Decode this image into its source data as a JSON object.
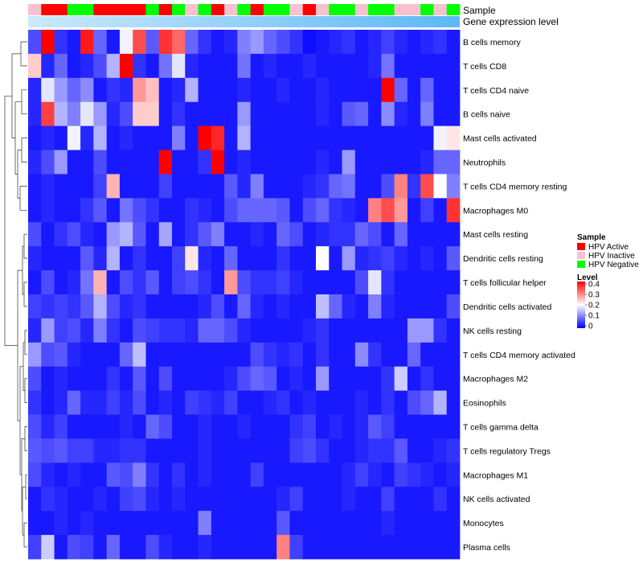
{
  "chart_data": {
    "type": "heatmap",
    "annotation_labels": [
      "Sample",
      "Gene expression level"
    ],
    "rows": [
      "B cells memory",
      "T cells CD8",
      "T cells CD4 naive",
      "B cells naive",
      "Mast cells activated",
      "Neutrophils",
      "T cells CD4 memory resting",
      "Macrophages M0",
      "Mast cells resting",
      "Dendritic cells resting",
      "T cells follicular helper",
      "Dendritic cells activated",
      "NK cells resting",
      "T cells CD4 memory activated",
      "Macrophages M2",
      "Eosinophils",
      "T cells gamma delta",
      "T cells regulatory  Tregs",
      "Macrophages M1",
      "NK cells activated",
      "Monocytes",
      "Plasma cells"
    ],
    "sample_groups": [
      "HPV Inactive",
      "HPV Active",
      "HPV Active",
      "HPV Negative",
      "HPV Negative",
      "HPV Active",
      "HPV Active",
      "HPV Active",
      "HPV Active",
      "HPV Negative",
      "HPV Active",
      "HPV Negative",
      "HPV Inactive",
      "HPV Negative",
      "HPV Active",
      "HPV Inactive",
      "HPV Negative",
      "HPV Active",
      "HPV Negative",
      "HPV Negative",
      "HPV Inactive",
      "HPV Active",
      "HPV Inactive",
      "HPV Negative",
      "HPV Negative",
      "HPV Inactive",
      "HPV Negative",
      "HPV Negative",
      "HPV Inactive",
      "HPV Inactive",
      "HPV Negative",
      "HPV Inactive",
      "HPV Negative"
    ],
    "values": [
      [
        0.06,
        0.4,
        0.04,
        0.02,
        0.38,
        0.08,
        0.02,
        0.19,
        0.34,
        0.07,
        0.36,
        0.32,
        0.08,
        0.04,
        0.02,
        0.03,
        0.1,
        0.12,
        0.08,
        0.06,
        0.04,
        0.01,
        0.02,
        0.03,
        0.04,
        0.02,
        0.03,
        0.05,
        0.03,
        0.02,
        0.03,
        0.04,
        0.02
      ],
      [
        0.24,
        0.03,
        0.08,
        0.02,
        0.03,
        0.06,
        0.14,
        0.4,
        0.04,
        0.02,
        0.09,
        0.18,
        0.03,
        0.02,
        0.02,
        0.02,
        0.09,
        0.02,
        0.03,
        0.02,
        0.02,
        0.03,
        0.02,
        0.02,
        0.02,
        0.02,
        0.03,
        0.09,
        0.02,
        0.02,
        0.02,
        0.02,
        0.02
      ],
      [
        0.03,
        0.18,
        0.12,
        0.08,
        0.11,
        0.02,
        0.04,
        0.03,
        0.28,
        0.25,
        0.02,
        0.03,
        0.14,
        0.02,
        0.02,
        0.02,
        0.03,
        0.02,
        0.02,
        0.03,
        0.02,
        0.02,
        0.03,
        0.02,
        0.02,
        0.02,
        0.02,
        0.4,
        0.08,
        0.02,
        0.08,
        0.02,
        0.02
      ],
      [
        0.03,
        0.35,
        0.14,
        0.1,
        0.18,
        0.12,
        0.03,
        0.06,
        0.24,
        0.24,
        0.02,
        0.04,
        0.02,
        0.02,
        0.02,
        0.02,
        0.12,
        0.02,
        0.02,
        0.02,
        0.02,
        0.02,
        0.03,
        0.02,
        0.07,
        0.08,
        0.02,
        0.11,
        0.03,
        0.02,
        0.1,
        0.02,
        0.02
      ],
      [
        0.02,
        0.03,
        0.02,
        0.19,
        0.03,
        0.14,
        0.02,
        0.03,
        0.02,
        0.02,
        0.02,
        0.1,
        0.02,
        0.4,
        0.37,
        0.02,
        0.14,
        0.02,
        0.02,
        0.02,
        0.02,
        0.02,
        0.02,
        0.02,
        0.02,
        0.02,
        0.02,
        0.02,
        0.02,
        0.02,
        0.02,
        0.19,
        0.22
      ],
      [
        0.03,
        0.06,
        0.12,
        0.02,
        0.02,
        0.06,
        0.02,
        0.02,
        0.02,
        0.02,
        0.4,
        0.02,
        0.02,
        0.04,
        0.4,
        0.02,
        0.03,
        0.02,
        0.02,
        0.02,
        0.02,
        0.02,
        0.03,
        0.02,
        0.12,
        0.02,
        0.02,
        0.02,
        0.02,
        0.02,
        0.03,
        0.08,
        0.08
      ],
      [
        0.02,
        0.03,
        0.02,
        0.02,
        0.02,
        0.05,
        0.26,
        0.02,
        0.02,
        0.02,
        0.05,
        0.02,
        0.02,
        0.02,
        0.02,
        0.07,
        0.03,
        0.1,
        0.02,
        0.02,
        0.02,
        0.03,
        0.04,
        0.08,
        0.09,
        0.02,
        0.02,
        0.06,
        0.3,
        0.04,
        0.34,
        0.2,
        0.1
      ],
      [
        0.02,
        0.03,
        0.02,
        0.02,
        0.04,
        0.07,
        0.02,
        0.09,
        0.06,
        0.04,
        0.02,
        0.02,
        0.04,
        0.03,
        0.02,
        0.06,
        0.08,
        0.08,
        0.08,
        0.07,
        0.02,
        0.06,
        0.08,
        0.04,
        0.03,
        0.02,
        0.3,
        0.34,
        0.28,
        0.02,
        0.05,
        0.02,
        0.36
      ],
      [
        0.06,
        0.02,
        0.04,
        0.06,
        0.03,
        0.02,
        0.12,
        0.14,
        0.07,
        0.02,
        0.13,
        0.02,
        0.04,
        0.07,
        0.1,
        0.02,
        0.02,
        0.03,
        0.02,
        0.08,
        0.06,
        0.02,
        0.03,
        0.04,
        0.04,
        0.08,
        0.06,
        0.02,
        0.08,
        0.02,
        0.02,
        0.02,
        0.02
      ],
      [
        0.03,
        0.02,
        0.02,
        0.02,
        0.07,
        0.03,
        0.14,
        0.02,
        0.04,
        0.02,
        0.02,
        0.05,
        0.22,
        0.03,
        0.02,
        0.08,
        0.02,
        0.02,
        0.02,
        0.04,
        0.02,
        0.02,
        0.2,
        0.02,
        0.12,
        0.03,
        0.04,
        0.05,
        0.03,
        0.02,
        0.03,
        0.02,
        0.07
      ],
      [
        0.02,
        0.06,
        0.02,
        0.03,
        0.09,
        0.26,
        0.02,
        0.06,
        0.04,
        0.07,
        0.02,
        0.05,
        0.06,
        0.04,
        0.02,
        0.28,
        0.06,
        0.04,
        0.04,
        0.05,
        0.03,
        0.02,
        0.02,
        0.02,
        0.02,
        0.06,
        0.18,
        0.04,
        0.02,
        0.02,
        0.02,
        0.02,
        0.02
      ],
      [
        0.05,
        0.04,
        0.05,
        0.04,
        0.07,
        0.14,
        0.06,
        0.03,
        0.04,
        0.02,
        0.02,
        0.02,
        0.02,
        0.03,
        0.06,
        0.02,
        0.08,
        0.03,
        0.02,
        0.03,
        0.02,
        0.02,
        0.15,
        0.08,
        0.03,
        0.02,
        0.1,
        0.03,
        0.02,
        0.02,
        0.02,
        0.02,
        0.06
      ],
      [
        0.03,
        0.12,
        0.05,
        0.06,
        0.03,
        0.1,
        0.04,
        0.02,
        0.06,
        0.05,
        0.04,
        0.04,
        0.03,
        0.08,
        0.08,
        0.06,
        0.03,
        0.02,
        0.02,
        0.02,
        0.02,
        0.03,
        0.04,
        0.02,
        0.02,
        0.02,
        0.02,
        0.02,
        0.02,
        0.12,
        0.12,
        0.04,
        0.02
      ],
      [
        0.12,
        0.06,
        0.07,
        0.03,
        0.02,
        0.02,
        0.02,
        0.08,
        0.15,
        0.02,
        0.02,
        0.02,
        0.02,
        0.02,
        0.02,
        0.02,
        0.02,
        0.06,
        0.04,
        0.03,
        0.04,
        0.02,
        0.04,
        0.02,
        0.02,
        0.11,
        0.04,
        0.02,
        0.02,
        0.08,
        0.02,
        0.02,
        0.02
      ],
      [
        0.06,
        0.02,
        0.03,
        0.02,
        0.02,
        0.02,
        0.04,
        0.02,
        0.07,
        0.02,
        0.06,
        0.02,
        0.02,
        0.02,
        0.02,
        0.03,
        0.06,
        0.08,
        0.07,
        0.02,
        0.03,
        0.02,
        0.12,
        0.02,
        0.02,
        0.02,
        0.02,
        0.04,
        0.16,
        0.02,
        0.04,
        0.02,
        0.02
      ],
      [
        0.04,
        0.02,
        0.03,
        0.08,
        0.03,
        0.03,
        0.05,
        0.03,
        0.06,
        0.02,
        0.03,
        0.02,
        0.05,
        0.04,
        0.03,
        0.05,
        0.02,
        0.02,
        0.03,
        0.04,
        0.02,
        0.03,
        0.02,
        0.02,
        0.02,
        0.03,
        0.02,
        0.04,
        0.02,
        0.06,
        0.08,
        0.14,
        0.02
      ],
      [
        0.06,
        0.03,
        0.05,
        0.02,
        0.02,
        0.02,
        0.02,
        0.03,
        0.02,
        0.08,
        0.06,
        0.02,
        0.02,
        0.03,
        0.02,
        0.02,
        0.03,
        0.02,
        0.02,
        0.02,
        0.04,
        0.05,
        0.02,
        0.03,
        0.02,
        0.03,
        0.07,
        0.05,
        0.02,
        0.02,
        0.02,
        0.02,
        0.02
      ],
      [
        0.07,
        0.06,
        0.07,
        0.05,
        0.05,
        0.03,
        0.03,
        0.04,
        0.04,
        0.02,
        0.02,
        0.02,
        0.02,
        0.03,
        0.02,
        0.02,
        0.02,
        0.02,
        0.02,
        0.02,
        0.05,
        0.06,
        0.04,
        0.02,
        0.02,
        0.03,
        0.04,
        0.04,
        0.07,
        0.02,
        0.02,
        0.03,
        0.04
      ],
      [
        0.06,
        0.03,
        0.02,
        0.03,
        0.02,
        0.02,
        0.07,
        0.06,
        0.1,
        0.04,
        0.02,
        0.04,
        0.02,
        0.03,
        0.02,
        0.02,
        0.02,
        0.05,
        0.02,
        0.02,
        0.02,
        0.02,
        0.02,
        0.02,
        0.03,
        0.05,
        0.03,
        0.02,
        0.05,
        0.04,
        0.03,
        0.02,
        0.03
      ],
      [
        0.02,
        0.04,
        0.03,
        0.02,
        0.02,
        0.03,
        0.02,
        0.05,
        0.06,
        0.03,
        0.02,
        0.03,
        0.02,
        0.02,
        0.02,
        0.02,
        0.02,
        0.02,
        0.02,
        0.03,
        0.05,
        0.02,
        0.02,
        0.02,
        0.03,
        0.02,
        0.02,
        0.05,
        0.02,
        0.02,
        0.02,
        0.04,
        0.02
      ],
      [
        0.02,
        0.02,
        0.03,
        0.02,
        0.03,
        0.02,
        0.02,
        0.02,
        0.02,
        0.02,
        0.02,
        0.02,
        0.02,
        0.1,
        0.02,
        0.02,
        0.02,
        0.02,
        0.02,
        0.07,
        0.02,
        0.02,
        0.02,
        0.02,
        0.02,
        0.02,
        0.02,
        0.03,
        0.02,
        0.02,
        0.02,
        0.02,
        0.02
      ],
      [
        0.05,
        0.16,
        0.02,
        0.06,
        0.05,
        0.02,
        0.08,
        0.02,
        0.02,
        0.06,
        0.03,
        0.02,
        0.02,
        0.03,
        0.02,
        0.02,
        0.02,
        0.02,
        0.02,
        0.3,
        0.05,
        0.02,
        0.02,
        0.02,
        0.02,
        0.02,
        0.02,
        0.02,
        0.02,
        0.02,
        0.02,
        0.02,
        0.02
      ]
    ],
    "color_scale": {
      "low": "#0000ff",
      "mid": "#ffffff",
      "high": "#ff0000",
      "range": [
        0,
        0.4
      ],
      "ticks": [
        "0.4",
        "0.3",
        "0.2",
        "0.1",
        "0"
      ]
    },
    "gene_expression_gradient": [
      "#cbe9fb",
      "#5cb8f6"
    ],
    "legend": {
      "placement": "right",
      "sample_title": "Sample",
      "sample_entries": [
        {
          "label": "HPV Active",
          "color": "#ff0000"
        },
        {
          "label": "HPV Inactive",
          "color": "#f6c2d0"
        },
        {
          "label": "HPV Negative",
          "color": "#00ff00"
        }
      ],
      "level_title": "Level"
    },
    "dendrogram": "rows"
  }
}
